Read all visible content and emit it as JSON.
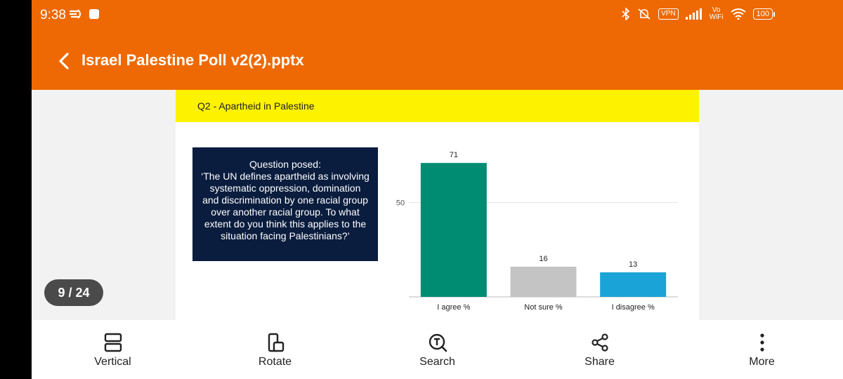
{
  "status_bar": {
    "time": "9:38",
    "vpn": "VPN",
    "vowifi_top": "Vo",
    "vowifi_bottom": "WiFi",
    "battery": "100"
  },
  "header": {
    "title": "Israel Palestine Poll v2(2).pptx",
    "color": "#ee6903"
  },
  "slide": {
    "heading": "Q2 - Apartheid in Palestine",
    "question_lines": [
      "Question posed:",
      "‘The UN defines apartheid as involving",
      "systematic oppression, domination",
      "and discrimination by one racial group",
      "over another racial group. To what",
      "extent do you think this applies to the",
      "situation facing Palestinians?’"
    ]
  },
  "chart_data": {
    "type": "bar",
    "categories": [
      "I agree %",
      "Not sure %",
      "I disagree %"
    ],
    "values": [
      71,
      16,
      13
    ],
    "colors": [
      "#008c73",
      "#c4c4c4",
      "#1aa3d6"
    ],
    "yticks": [
      50
    ],
    "ylim": [
      0,
      80
    ],
    "grid": true
  },
  "page_indicator": "9 / 24",
  "bottom_nav": [
    {
      "icon": "vertical-icon",
      "label": "Vertical"
    },
    {
      "icon": "rotate-icon",
      "label": "Rotate"
    },
    {
      "icon": "search-icon",
      "label": "Search"
    },
    {
      "icon": "share-icon",
      "label": "Share"
    },
    {
      "icon": "more-icon",
      "label": "More"
    }
  ]
}
